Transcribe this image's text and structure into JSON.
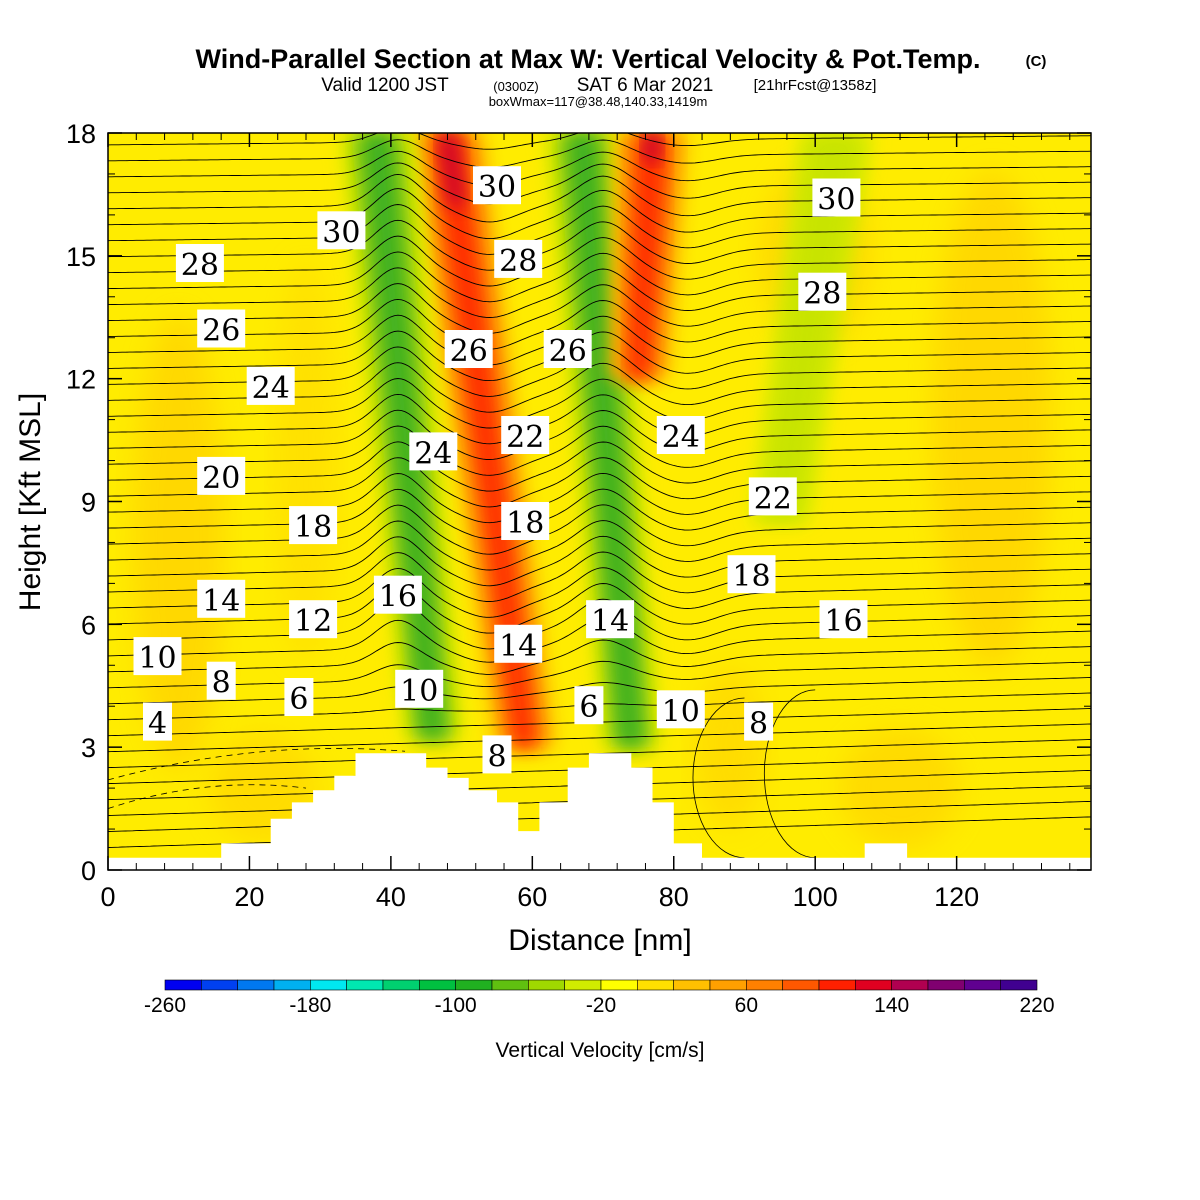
{
  "header": {
    "title": "Wind-Parallel Section at Max W: Vertical Velocity & Pot.Temp.",
    "copyright": "(C)",
    "valid_prefix": "Valid 1200 JST",
    "valid_utc": "(0300Z)",
    "valid_date": "SAT 6 Mar 2021",
    "forecast": "[21hrFcst@1358z]",
    "boxwmax": "boxWmax=117@38.48,140.33,1419m"
  },
  "chart_data": {
    "type": "heatmap",
    "subtype": "cross-section filled contours of vertical velocity with potential temperature contour lines",
    "xlabel": "Distance [nm]",
    "ylabel": "Height [Kft MSL]",
    "xlim": [
      0,
      139
    ],
    "ylim": [
      0,
      18
    ],
    "xticks": [
      "0",
      "20",
      "40",
      "60",
      "80",
      "100",
      "120"
    ],
    "xtick_values": [
      0,
      20,
      40,
      60,
      80,
      100,
      120
    ],
    "yticks": [
      "0",
      "3",
      "6",
      "9",
      "12",
      "15",
      "18"
    ],
    "ytick_values": [
      0,
      3,
      6,
      9,
      12,
      15,
      18
    ],
    "colorbar": {
      "label": "Vertical Velocity [cm/s]",
      "min": -260,
      "max": 220,
      "step": 20,
      "tick_labels": [
        "-260",
        "-180",
        "-100",
        "-20",
        "60",
        "140",
        "220"
      ],
      "tick_values": [
        -260,
        -180,
        -100,
        -20,
        60,
        140,
        220
      ],
      "colors": [
        "#0000f0",
        "#0040f0",
        "#0078f0",
        "#00b0f0",
        "#00e8f0",
        "#00e8b0",
        "#00d070",
        "#00c040",
        "#20b020",
        "#60c010",
        "#a0d800",
        "#d0ec00",
        "#ffff00",
        "#ffe000",
        "#ffc000",
        "#ffa000",
        "#ff8000",
        "#ff5800",
        "#ff2000",
        "#e00020",
        "#b00050",
        "#800070",
        "#600090",
        "#400090"
      ]
    },
    "vertical_velocity_bands": [
      {
        "sign": "up",
        "x_at_top": 48,
        "x_at_bottom": 59,
        "y_top": 18,
        "y_bottom": 3.0,
        "peak_cm_s": 140
      },
      {
        "sign": "down",
        "x_at_top": 38,
        "x_at_bottom": 46,
        "y_top": 18,
        "y_bottom": 3.2,
        "peak_cm_s": -100
      },
      {
        "sign": "down",
        "x_at_top": 67,
        "x_at_bottom": 74,
        "y_top": 18,
        "y_bottom": 3.0,
        "peak_cm_s": -100
      },
      {
        "sign": "up",
        "x_at_top": 77,
        "x_at_bottom": 75,
        "y_top": 18,
        "y_bottom": 12.0,
        "peak_cm_s": 160
      },
      {
        "sign": "down",
        "x_at_top": 103,
        "x_at_bottom": 95,
        "y_top": 18,
        "y_bottom": 8.5,
        "peak_cm_s": -40
      }
    ],
    "terrain_kft": [
      [
        0,
        0.3
      ],
      [
        16,
        0.3
      ],
      [
        16,
        0.65
      ],
      [
        23,
        0.65
      ],
      [
        23,
        1.25
      ],
      [
        26,
        1.25
      ],
      [
        26,
        1.65
      ],
      [
        29,
        1.65
      ],
      [
        29,
        1.95
      ],
      [
        32,
        1.95
      ],
      [
        32,
        2.3
      ],
      [
        35,
        2.3
      ],
      [
        35,
        2.85
      ],
      [
        45,
        2.85
      ],
      [
        45,
        2.5
      ],
      [
        48,
        2.5
      ],
      [
        48,
        2.25
      ],
      [
        51,
        2.25
      ],
      [
        51,
        1.95
      ],
      [
        55,
        1.95
      ],
      [
        55,
        1.65
      ],
      [
        58,
        1.65
      ],
      [
        58,
        0.95
      ],
      [
        61,
        0.95
      ],
      [
        61,
        1.65
      ],
      [
        65,
        1.65
      ],
      [
        65,
        2.5
      ],
      [
        68,
        2.5
      ],
      [
        68,
        2.85
      ],
      [
        74,
        2.85
      ],
      [
        74,
        2.5
      ],
      [
        77,
        2.5
      ],
      [
        77,
        1.65
      ],
      [
        80,
        1.65
      ],
      [
        80,
        0.65
      ],
      [
        84,
        0.65
      ],
      [
        84,
        0.3
      ],
      [
        107,
        0.3
      ],
      [
        107,
        0.65
      ],
      [
        113,
        0.65
      ],
      [
        113,
        0.3
      ],
      [
        139,
        0.3
      ]
    ],
    "theta_contour_labels": [
      {
        "text": "30",
        "x": 33,
        "y": 15.6
      },
      {
        "text": "30",
        "x": 55,
        "y": 16.7
      },
      {
        "text": "30",
        "x": 103,
        "y": 16.4
      },
      {
        "text": "28",
        "x": 13,
        "y": 14.8
      },
      {
        "text": "28",
        "x": 58,
        "y": 14.9
      },
      {
        "text": "28",
        "x": 101,
        "y": 14.1
      },
      {
        "text": "26",
        "x": 16,
        "y": 13.2
      },
      {
        "text": "26",
        "x": 51,
        "y": 12.7
      },
      {
        "text": "26",
        "x": 65,
        "y": 12.7
      },
      {
        "text": "24",
        "x": 23,
        "y": 11.8
      },
      {
        "text": "24",
        "x": 46,
        "y": 10.2
      },
      {
        "text": "24",
        "x": 81,
        "y": 10.6
      },
      {
        "text": "22",
        "x": 59,
        "y": 10.6
      },
      {
        "text": "22",
        "x": 94,
        "y": 9.1
      },
      {
        "text": "20",
        "x": 16,
        "y": 9.6
      },
      {
        "text": "18",
        "x": 29,
        "y": 8.4
      },
      {
        "text": "18",
        "x": 59,
        "y": 8.5
      },
      {
        "text": "18",
        "x": 91,
        "y": 7.2
      },
      {
        "text": "16",
        "x": 41,
        "y": 6.7
      },
      {
        "text": "16",
        "x": 104,
        "y": 6.1
      },
      {
        "text": "14",
        "x": 16,
        "y": 6.6
      },
      {
        "text": "14",
        "x": 58,
        "y": 5.5
      },
      {
        "text": "14",
        "x": 71,
        "y": 6.1
      },
      {
        "text": "12",
        "x": 29,
        "y": 6.1
      },
      {
        "text": "10",
        "x": 7,
        "y": 5.2
      },
      {
        "text": "10",
        "x": 44,
        "y": 4.4
      },
      {
        "text": "10",
        "x": 81,
        "y": 3.9
      },
      {
        "text": "8",
        "x": 16,
        "y": 4.6
      },
      {
        "text": "8",
        "x": 55,
        "y": 2.8
      },
      {
        "text": "8",
        "x": 92,
        "y": 3.6
      },
      {
        "text": "6",
        "x": 27,
        "y": 4.2
      },
      {
        "text": "6",
        "x": 68,
        "y": 4.0
      },
      {
        "text": "4",
        "x": 7,
        "y": 3.6
      }
    ]
  }
}
